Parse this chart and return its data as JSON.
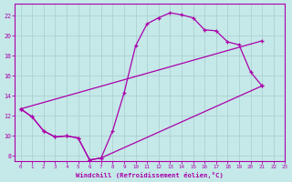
{
  "xlabel": "Windchill (Refroidissement éolien,°C)",
  "bg_color": "#c5e8e8",
  "grid_color": "#a8cece",
  "line_color": "#aa00aa",
  "xlim": [
    -0.5,
    23
  ],
  "ylim": [
    7.5,
    23.2
  ],
  "xticks": [
    0,
    1,
    2,
    3,
    4,
    5,
    6,
    7,
    8,
    9,
    10,
    11,
    12,
    13,
    14,
    15,
    16,
    17,
    18,
    19,
    20,
    21,
    22,
    23
  ],
  "yticks": [
    8,
    10,
    12,
    14,
    16,
    18,
    20,
    22
  ],
  "line1_x": [
    0,
    1,
    2,
    3,
    4,
    5,
    6,
    7,
    8,
    9,
    10,
    11,
    12,
    13,
    14,
    15,
    16,
    17,
    18,
    19,
    20,
    21
  ],
  "line1_y": [
    12.7,
    11.9,
    10.5,
    9.9,
    10.0,
    9.8,
    7.6,
    7.8,
    10.5,
    14.3,
    19.0,
    21.2,
    21.8,
    22.3,
    22.1,
    21.8,
    20.6,
    20.5,
    19.4,
    19.1,
    16.4,
    15.0
  ],
  "line2_x": [
    0,
    21
  ],
  "line2_y": [
    12.7,
    19.5
  ],
  "line3_x": [
    0,
    1,
    2,
    3,
    4,
    5,
    6,
    7,
    21
  ],
  "line3_y": [
    12.7,
    11.9,
    10.5,
    9.9,
    10.0,
    9.8,
    7.6,
    7.8,
    15.0
  ]
}
